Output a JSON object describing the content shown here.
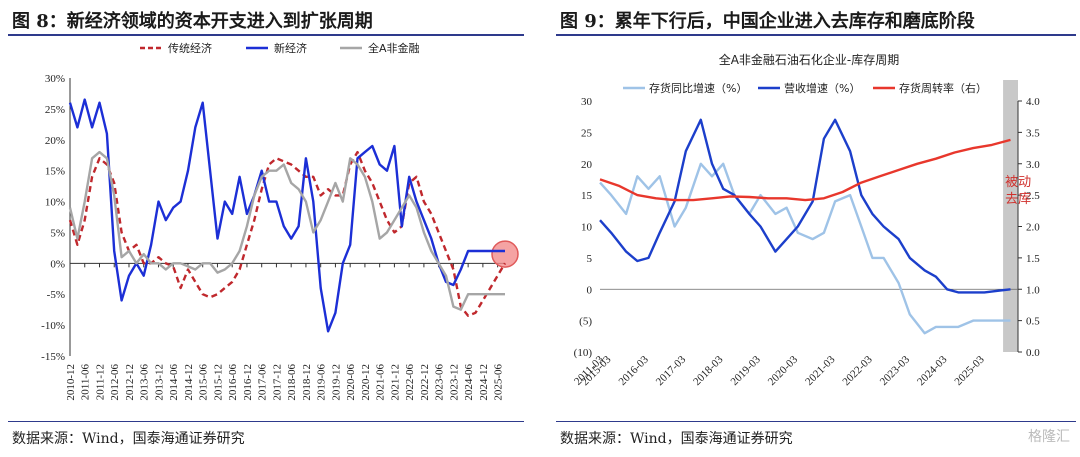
{
  "left": {
    "title": "图 8：新经济领域的资本开支进入到扩张周期",
    "source": "数据来源：Wind，国泰海通证券研究"
  },
  "right": {
    "title": "图 9：累年下行后，中国企业进入去库存和磨底阶段",
    "source": "数据来源：Wind，国泰海通证券研究",
    "watermark": "格隆汇"
  },
  "chart_data": [
    {
      "type": "line",
      "title": "",
      "ylim": [
        -0.15,
        0.3
      ],
      "y_ticks": [
        "30%",
        "25%",
        "20%",
        "15%",
        "10%",
        "5%",
        "0%",
        "-5%",
        "-10%",
        "-15%"
      ],
      "x_tick_labels": [
        "2010-12",
        "2011-06",
        "2011-12",
        "2012-06",
        "2012-12",
        "2013-06",
        "2013-12",
        "2014-06",
        "2014-12",
        "2015-06",
        "2015-12",
        "2016-06",
        "2016-12",
        "2017-06",
        "2017-12",
        "2018-06",
        "2018-12",
        "2019-06",
        "2019-12",
        "2020-06",
        "2020-12",
        "2021-06",
        "2021-12",
        "2022-06",
        "2022-12",
        "2023-06",
        "2023-12",
        "2024-06",
        "2024-12",
        "2025-06"
      ],
      "highlight": {
        "x": 29.5,
        "y": 0.015,
        "color": "#f28c8c"
      },
      "series": [
        {
          "name": "传统经济",
          "color": "#c0282d",
          "style": "dashed",
          "x": [
            0,
            0.5,
            1,
            1.5,
            2,
            2.5,
            3,
            3.5,
            4,
            4.5,
            5,
            5.5,
            6,
            6.5,
            7,
            7.5,
            8,
            8.5,
            9,
            9.5,
            10,
            10.5,
            11,
            11.5,
            12,
            12.5,
            13,
            13.5,
            14,
            14.5,
            15,
            15.5,
            16,
            16.5,
            17,
            17.5,
            18,
            18.5,
            19,
            19.5,
            20,
            20.5,
            21,
            21.5,
            22,
            22.5,
            23,
            23.5,
            24,
            24.5,
            25,
            25.5,
            26,
            26.5,
            27,
            27.5,
            28,
            28.5,
            29,
            29.5
          ],
          "y": [
            0.07,
            0.03,
            0.07,
            0.14,
            0.17,
            0.16,
            0.13,
            0.05,
            0.02,
            0.03,
            0.0,
            0.0,
            0.01,
            0.0,
            -0.005,
            -0.04,
            -0.01,
            -0.03,
            -0.05,
            -0.055,
            -0.05,
            -0.04,
            -0.03,
            -0.01,
            0.03,
            0.07,
            0.12,
            0.16,
            0.17,
            0.165,
            0.16,
            0.15,
            0.14,
            0.14,
            0.11,
            0.12,
            0.11,
            0.11,
            0.16,
            0.18,
            0.15,
            0.13,
            0.1,
            0.07,
            0.05,
            0.06,
            0.13,
            0.14,
            0.1,
            0.08,
            0.05,
            0.02,
            -0.01,
            -0.07,
            -0.085,
            -0.08,
            -0.06,
            -0.04,
            -0.02,
            0.0
          ]
        },
        {
          "name": "新经济",
          "color": "#1c2fd6",
          "style": "solid",
          "x": [
            0,
            0.5,
            1,
            1.5,
            2,
            2.5,
            3,
            3.5,
            4,
            4.5,
            5,
            5.5,
            6,
            6.5,
            7,
            7.5,
            8,
            8.5,
            9,
            9.5,
            10,
            10.5,
            11,
            11.5,
            12,
            12.5,
            13,
            13.5,
            14,
            14.5,
            15,
            15.5,
            16,
            16.5,
            17,
            17.5,
            18,
            18.5,
            19,
            19.5,
            20,
            20.5,
            21,
            21.5,
            22,
            22.5,
            23,
            23.5,
            24,
            24.5,
            25,
            25.5,
            26,
            26.5,
            27,
            27.5,
            28,
            28.5,
            29,
            29.5
          ],
          "y": [
            0.26,
            0.22,
            0.265,
            0.22,
            0.26,
            0.21,
            0.02,
            -0.06,
            -0.02,
            0.0,
            -0.02,
            0.03,
            0.1,
            0.07,
            0.09,
            0.1,
            0.15,
            0.22,
            0.26,
            0.15,
            0.04,
            0.1,
            0.08,
            0.14,
            0.08,
            0.11,
            0.15,
            0.1,
            0.1,
            0.06,
            0.04,
            0.06,
            0.17,
            0.1,
            -0.04,
            -0.11,
            -0.08,
            0.0,
            0.03,
            0.17,
            0.18,
            0.19,
            0.16,
            0.15,
            0.19,
            0.06,
            0.14,
            0.1,
            0.07,
            0.04,
            0.0,
            -0.03,
            -0.035,
            -0.01,
            0.02,
            0.02,
            0.02,
            0.02,
            0.02,
            0.02
          ]
        },
        {
          "name": "全A非金融",
          "color": "#a6a6a6",
          "style": "solid",
          "x": [
            0,
            0.5,
            1,
            1.5,
            2,
            2.5,
            3,
            3.5,
            4,
            4.5,
            5,
            5.5,
            6,
            6.5,
            7,
            7.5,
            8,
            8.5,
            9,
            9.5,
            10,
            10.5,
            11,
            11.5,
            12,
            12.5,
            13,
            13.5,
            14,
            14.5,
            15,
            15.5,
            16,
            16.5,
            17,
            17.5,
            18,
            18.5,
            19,
            19.5,
            20,
            20.5,
            21,
            21.5,
            22,
            22.5,
            23,
            23.5,
            24,
            24.5,
            25,
            25.5,
            26,
            26.5,
            27,
            27.5,
            28,
            28.5,
            29,
            29.5
          ],
          "y": [
            0.09,
            0.04,
            0.1,
            0.17,
            0.18,
            0.17,
            0.11,
            0.01,
            0.02,
            0.0,
            0.015,
            0.0,
            0.0,
            -0.01,
            0.0,
            0.0,
            -0.005,
            -0.01,
            0.0,
            0.0,
            -0.015,
            -0.01,
            0.0,
            0.02,
            0.06,
            0.11,
            0.14,
            0.15,
            0.15,
            0.16,
            0.13,
            0.12,
            0.1,
            0.05,
            0.07,
            0.1,
            0.13,
            0.1,
            0.17,
            0.16,
            0.14,
            0.1,
            0.04,
            0.05,
            0.07,
            0.09,
            0.11,
            0.09,
            0.05,
            0.02,
            0.0,
            -0.02,
            -0.07,
            -0.075,
            -0.05,
            -0.05,
            -0.05,
            -0.05,
            -0.05,
            -0.05
          ]
        }
      ]
    },
    {
      "type": "line",
      "title": "全A非金融石油石化企业-库存周期",
      "ylim": [
        -10,
        30
      ],
      "y2lim": [
        0.0,
        4.0
      ],
      "y_ticks": [
        "30",
        "25",
        "20",
        "15",
        "10",
        "5",
        "0",
        "(5)",
        "(10)"
      ],
      "y2_ticks": [
        "4.0",
        "3.5",
        "3.0",
        "2.5",
        "2.0",
        "1.5",
        "1.0",
        "0.5",
        "0.0"
      ],
      "x_tick_labels": [
        "2011-03",
        "2015-03",
        "2016-03",
        "2017-03",
        "2018-03",
        "2019-03",
        "2020-03",
        "2021-03",
        "2022-03",
        "2023-03",
        "2024-03",
        "2025-03"
      ],
      "annotation": "被动\n去库",
      "shade_from": 10.8,
      "series": [
        {
          "name": "存货同比增速（%）",
          "color": "#9fc3e7",
          "axis": "left",
          "x": [
            0,
            0.3,
            0.7,
            1.0,
            1.3,
            1.6,
            2.0,
            2.3,
            2.7,
            3.0,
            3.3,
            3.6,
            4.0,
            4.3,
            4.7,
            5.0,
            5.3,
            5.7,
            6.0,
            6.3,
            6.7,
            7.0,
            7.3,
            7.6,
            8.0,
            8.3,
            8.7,
            9.0,
            9.3,
            9.6,
            10.0,
            10.3,
            10.6,
            11.0
          ],
          "y": [
            17,
            15,
            12,
            18,
            16,
            18,
            10,
            13,
            20,
            18,
            20,
            15,
            12,
            15,
            12,
            13,
            9,
            8,
            9,
            14,
            15,
            10,
            5,
            5,
            1,
            -4,
            -7,
            -6,
            -6,
            -6,
            -5,
            -5,
            -5,
            -5
          ]
        },
        {
          "name": "营收增速（%）",
          "color": "#1c3fcb",
          "axis": "left",
          "x": [
            0,
            0.3,
            0.7,
            1.0,
            1.3,
            1.6,
            2.0,
            2.3,
            2.7,
            3.0,
            3.3,
            3.6,
            4.0,
            4.3,
            4.7,
            5.0,
            5.3,
            5.7,
            6.0,
            6.3,
            6.7,
            7.0,
            7.3,
            7.6,
            8.0,
            8.3,
            8.7,
            9.0,
            9.3,
            9.6,
            10.0,
            10.3,
            10.6,
            11.0
          ],
          "y": [
            11,
            9,
            6,
            4.5,
            5,
            9,
            14,
            22,
            27,
            20,
            16,
            15,
            12,
            10,
            6,
            8,
            10,
            14,
            24,
            27,
            22,
            15,
            12,
            10,
            8,
            5,
            3,
            2,
            0,
            -0.5,
            -0.5,
            -0.5,
            -0.3,
            0.0
          ]
        },
        {
          "name": "存货周转率（右）",
          "color": "#e8372c",
          "axis": "right",
          "x": [
            0,
            0.5,
            1.0,
            1.5,
            2.0,
            2.5,
            3.0,
            3.5,
            4.0,
            4.5,
            5.0,
            5.5,
            6.0,
            6.5,
            7.0,
            7.5,
            8.0,
            8.5,
            9.0,
            9.5,
            10.0,
            10.5,
            11.0
          ],
          "y": [
            2.75,
            2.65,
            2.5,
            2.45,
            2.42,
            2.42,
            2.45,
            2.48,
            2.47,
            2.45,
            2.45,
            2.42,
            2.45,
            2.55,
            2.7,
            2.8,
            2.9,
            3.0,
            3.08,
            3.18,
            3.25,
            3.3,
            3.38
          ]
        }
      ]
    }
  ]
}
